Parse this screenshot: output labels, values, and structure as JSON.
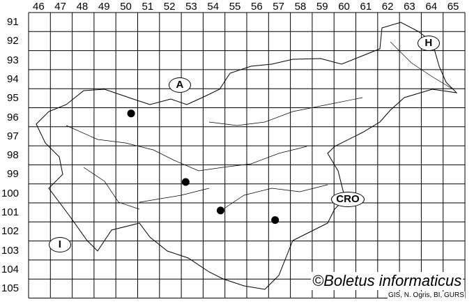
{
  "map": {
    "columns": [
      "46",
      "47",
      "48",
      "49",
      "50",
      "51",
      "52",
      "53",
      "54",
      "55",
      "56",
      "57",
      "58",
      "59",
      "60",
      "61",
      "62",
      "63",
      "64",
      "65"
    ],
    "rows": [
      "91",
      "92",
      "93",
      "94",
      "95",
      "96",
      "97",
      "98",
      "99",
      "100",
      "101",
      "102",
      "103",
      "104",
      "105"
    ],
    "country_labels": [
      {
        "text": "A",
        "col": 52.9,
        "row": 94.8
      },
      {
        "text": "H",
        "col": 64.3,
        "row": 92.6
      },
      {
        "text": "CRO",
        "col": 60.6,
        "row": 100.8
      },
      {
        "text": "I",
        "col": 47.4,
        "row": 103.2
      }
    ],
    "records": [
      {
        "col": 50.7,
        "row": 96.3
      },
      {
        "col": 53.2,
        "row": 99.9
      },
      {
        "col": 54.8,
        "row": 101.4
      },
      {
        "col": 57.3,
        "row": 101.9
      }
    ],
    "colors": {
      "grid": "#000000",
      "record": "#000000",
      "border": "#000000"
    }
  },
  "credit": "©Boletus informaticus",
  "source": "GIS, N. Ogris, BI, GURS"
}
